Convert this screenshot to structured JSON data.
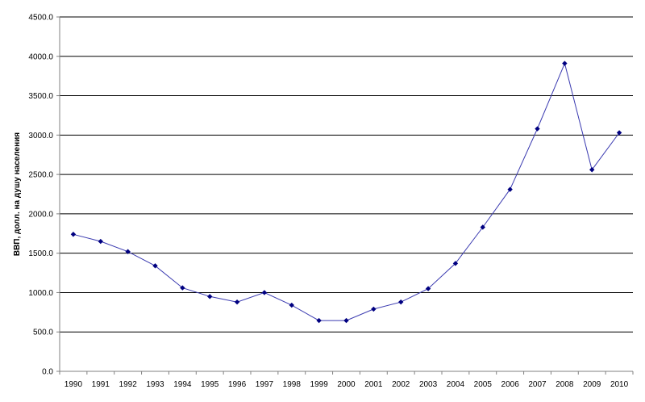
{
  "chart_data": {
    "type": "line",
    "title": "",
    "xlabel": "",
    "ylabel": "ВВП, долл. на душу населения",
    "x": [
      "1990",
      "1991",
      "1992",
      "1993",
      "1994",
      "1995",
      "1996",
      "1997",
      "1998",
      "1999",
      "2000",
      "2001",
      "2002",
      "2003",
      "2004",
      "2005",
      "2006",
      "2007",
      "2008",
      "2009",
      "2010"
    ],
    "series": [
      {
        "values": [
          1740,
          1650,
          1520,
          1340,
          1060,
          950,
          880,
          1000,
          840,
          645,
          645,
          790,
          880,
          1050,
          1370,
          1830,
          2310,
          3080,
          3910,
          2560,
          3030
        ]
      }
    ],
    "ylim": [
      0,
      4500
    ],
    "yticks": [
      "0.0",
      "500.0",
      "1000.0",
      "1500.0",
      "2000.0",
      "2500.0",
      "3000.0",
      "3500.0",
      "4000.0",
      "4500.0"
    ],
    "grid": "horizontal",
    "legend": "none",
    "colors": {
      "line": "#3a3ab0",
      "marker": "#000080",
      "grid": "#000000",
      "axis": "#808080"
    }
  }
}
